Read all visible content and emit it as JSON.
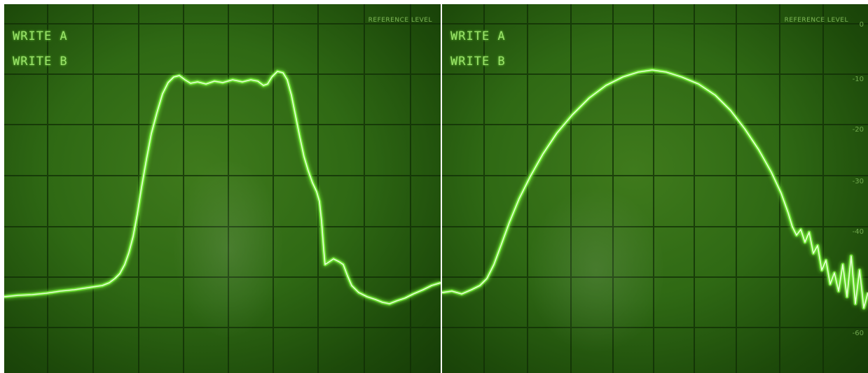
{
  "left_screen": {
    "write_a": "WRITE A",
    "write_b": "WRITE B",
    "reference_level": "REFERENCE LEVEL"
  },
  "right_screen": {
    "write_a": "WRITE A",
    "write_b": "WRITE B",
    "reference_level": "REFERENCE LEVEL",
    "db_scale": [
      "0",
      "-10",
      "-20",
      "-30",
      "-40",
      "-60"
    ]
  },
  "colors": {
    "trace": "#7dff3a",
    "trace_core": "#e8ffd8",
    "grid": "#0f2a05",
    "screen": "#2f6914"
  }
}
